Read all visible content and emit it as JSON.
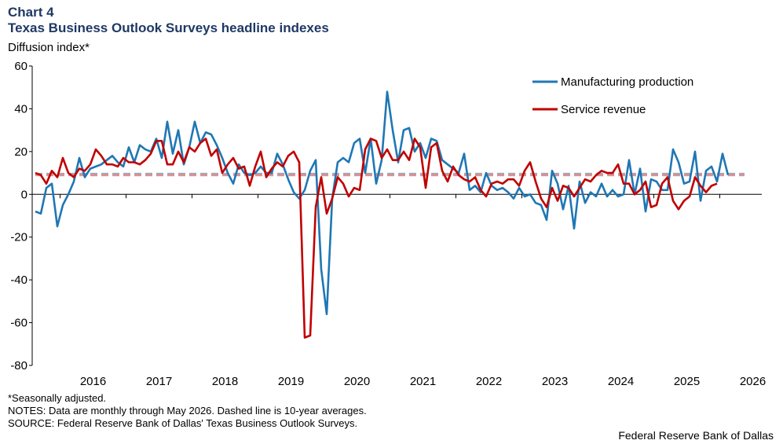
{
  "header": {
    "chart_number": "Chart 4",
    "title": "Texas Business Outlook Surveys headline indexes",
    "units": "Diffusion index*"
  },
  "footer": {
    "note1": "*Seasonally adjusted.",
    "note2": "NOTES: Data are monthly through May 2026. Dashed line is 10-year averages.",
    "note3": "SOURCE: Federal Reserve Bank of Dallas' Texas Business Outlook Surveys.",
    "credit": "Federal Reserve Bank of Dallas"
  },
  "chart_data": {
    "type": "line",
    "title": "Texas Business Outlook Surveys headline indexes",
    "ylabel": "Diffusion index*",
    "ylim": [
      -80,
      60
    ],
    "yticks": [
      -80,
      -60,
      -40,
      -20,
      0,
      20,
      40,
      60
    ],
    "xlim": [
      "2015-08",
      "2026-05"
    ],
    "xticks": [
      "2016",
      "2017",
      "2018",
      "2019",
      "2020",
      "2021",
      "2022",
      "2023",
      "2024",
      "2025",
      "2026"
    ],
    "x_start": "2015-08",
    "legend_position": "top-right",
    "grid": false,
    "series": [
      {
        "name": "Manufacturing production",
        "color": "#1f77b4",
        "values": [
          -8,
          -9,
          3,
          5,
          -15,
          -5,
          0,
          6,
          17,
          8,
          12,
          13,
          14,
          16,
          18,
          15,
          13,
          22,
          15,
          23,
          21,
          20,
          26,
          17,
          34,
          19,
          30,
          14,
          22,
          34,
          24,
          29,
          28,
          23,
          17,
          10,
          5,
          14,
          10,
          9,
          10,
          13,
          10,
          10,
          19,
          14,
          7,
          1,
          -2,
          2,
          11,
          16,
          -35,
          -56,
          -2,
          15,
          17,
          15,
          24,
          26,
          10,
          26,
          5,
          16,
          48,
          30,
          15,
          30,
          31,
          20,
          24,
          17,
          26,
          25,
          16,
          14,
          12,
          10,
          19,
          2,
          4,
          1,
          10,
          4,
          2,
          3,
          1,
          -2,
          3,
          -1,
          0,
          -4,
          -5,
          -12,
          11,
          5,
          -7,
          4,
          -16,
          6,
          -4,
          1,
          -1,
          5,
          -1,
          2,
          -1,
          0,
          16,
          0,
          12,
          -8,
          7,
          6,
          2,
          2,
          21,
          15,
          5,
          6,
          20,
          -3,
          11,
          13,
          6,
          19,
          9
        ],
        "average": 9.5
      },
      {
        "name": "Service revenue",
        "color": "#c00000",
        "values": [
          10,
          9,
          5,
          11,
          8,
          17,
          10,
          8,
          12,
          11,
          14,
          21,
          18,
          14,
          14,
          13,
          17,
          15,
          15,
          14,
          16,
          19,
          25,
          25,
          14,
          14,
          20,
          15,
          22,
          20,
          24,
          26,
          18,
          21,
          10,
          14,
          17,
          12,
          13,
          4,
          13,
          20,
          8,
          12,
          15,
          13,
          18,
          20,
          15,
          -67,
          -66,
          -6,
          8,
          -9,
          -2,
          8,
          5,
          -1,
          3,
          2,
          21,
          26,
          25,
          17,
          21,
          16,
          16,
          20,
          16,
          26,
          22,
          3,
          22,
          24,
          11,
          6,
          13,
          9,
          7,
          6,
          8,
          2,
          -1,
          5,
          6,
          5,
          7,
          7,
          4,
          11,
          15,
          6,
          -2,
          -6,
          3,
          -3,
          4,
          3,
          -1,
          3,
          7,
          6,
          9,
          11,
          10,
          10,
          14,
          5,
          5,
          0,
          2,
          6,
          -6,
          -5,
          5,
          8,
          -3,
          -7,
          -3,
          -1,
          8,
          4,
          1,
          4,
          5
        ],
        "average": 9.0
      }
    ]
  }
}
